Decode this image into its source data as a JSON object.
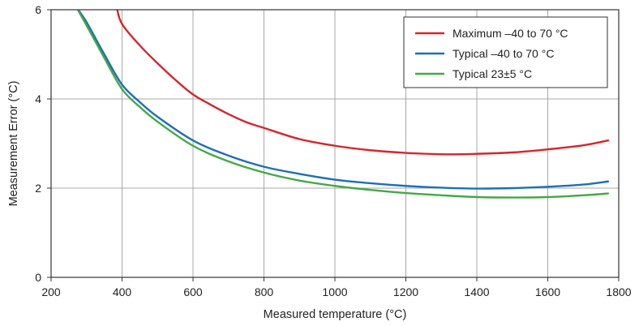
{
  "chart_data": {
    "type": "line",
    "xlabel": "Measured temperature (°C)",
    "ylabel": "Measurement Error (°C)",
    "xlim": [
      200,
      1800
    ],
    "ylim": [
      0,
      6
    ],
    "xticks": [
      200,
      400,
      600,
      800,
      1000,
      1200,
      1400,
      1600,
      1800
    ],
    "yticks": [
      0,
      2,
      4,
      6
    ],
    "grid": true,
    "legend_position": "top-right",
    "series": [
      {
        "name": "Maximum –40 to 70 °C",
        "color": "#d7262b",
        "x": [
          385,
          400,
          450,
          500,
          550,
          600,
          650,
          700,
          750,
          800,
          900,
          1000,
          1100,
          1200,
          1300,
          1350,
          1400,
          1500,
          1600,
          1700,
          1770
        ],
        "y": [
          6.05,
          5.68,
          5.2,
          4.8,
          4.43,
          4.1,
          3.87,
          3.66,
          3.48,
          3.35,
          3.1,
          2.95,
          2.85,
          2.79,
          2.76,
          2.76,
          2.77,
          2.8,
          2.87,
          2.96,
          3.07
        ]
      },
      {
        "name": "Typical –40 to 70 °C",
        "color": "#1d6fb8",
        "x": [
          272,
          300,
          350,
          400,
          450,
          500,
          600,
          700,
          800,
          900,
          1000,
          1100,
          1200,
          1300,
          1400,
          1500,
          1600,
          1700,
          1770
        ],
        "y": [
          6.05,
          5.72,
          5.0,
          4.32,
          3.93,
          3.6,
          3.07,
          2.73,
          2.48,
          2.32,
          2.19,
          2.11,
          2.05,
          2.01,
          1.99,
          2.0,
          2.03,
          2.08,
          2.15
        ]
      },
      {
        "name": "Typical 23±5 °C",
        "color": "#45a845",
        "x": [
          272,
          300,
          350,
          400,
          450,
          500,
          600,
          700,
          800,
          900,
          1000,
          1100,
          1200,
          1300,
          1400,
          1500,
          1600,
          1700,
          1770
        ],
        "y": [
          6.05,
          5.65,
          4.92,
          4.22,
          3.82,
          3.49,
          2.95,
          2.6,
          2.35,
          2.17,
          2.05,
          1.96,
          1.89,
          1.84,
          1.8,
          1.79,
          1.8,
          1.84,
          1.88
        ]
      }
    ]
  }
}
